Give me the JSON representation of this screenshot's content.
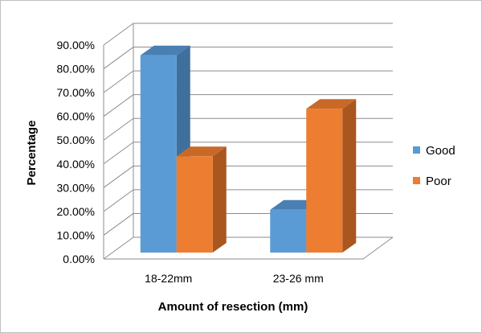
{
  "chart_data": {
    "type": "bar",
    "title": "",
    "xlabel": "Amount of resection (mm)",
    "ylabel": "Percentage",
    "categories": [
      "18-22mm",
      "23-26 mm"
    ],
    "series": [
      {
        "name": "Good",
        "values": [
          83.0,
          18.0
        ],
        "color": "#5b9bd5",
        "side_color": "#3f6f9c",
        "top_color": "#497fb2"
      },
      {
        "name": "Poor",
        "values": [
          40.5,
          60.5
        ],
        "color": "#ed7d31",
        "side_color": "#a9561f",
        "top_color": "#c96928"
      }
    ],
    "ylim": [
      0,
      90
    ],
    "ytick_step": 10,
    "ytick_labels": [
      "0.00%",
      "10.00%",
      "20.00%",
      "30.00%",
      "40.00%",
      "50.00%",
      "60.00%",
      "70.00%",
      "80.00%",
      "90.00%"
    ],
    "grid": true,
    "legend_position": "right",
    "gridline_color": "#8c8c8c"
  }
}
